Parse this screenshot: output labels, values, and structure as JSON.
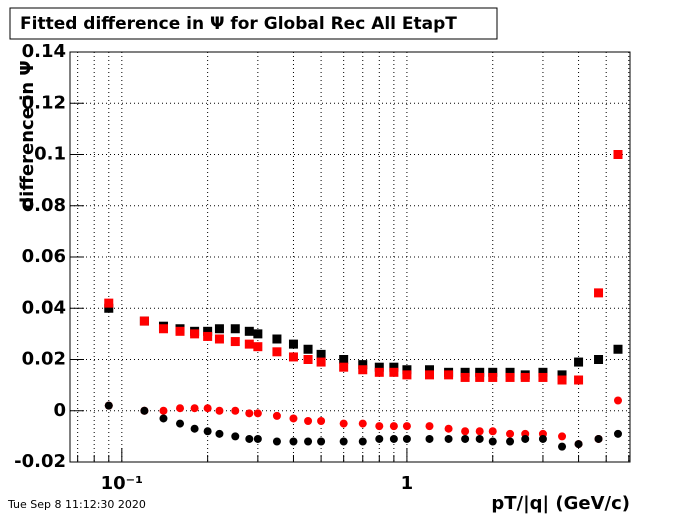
{
  "chart_data": {
    "type": "scatter",
    "title": "Fitted difference in  Ψ  for Global Rec All EtapT",
    "y_label": "difference in Ψ",
    "x_label": "pT/|q| (GeV/c)",
    "timestamp": "Tue Sep  8 11:12:30 2020",
    "log_x": true,
    "grid": true,
    "xlim": [
      0.0658,
      6.06
    ],
    "ylim": [
      -0.02,
      0.14
    ],
    "xticks": [
      {
        "value": 0.1,
        "label": "10⁻¹"
      },
      1
    ],
    "xminor_ticks": [
      0.07,
      0.08,
      0.09,
      0.2,
      0.3,
      0.4,
      0.5,
      0.6,
      0.7,
      0.8,
      0.9,
      2,
      3,
      4,
      5,
      6
    ],
    "yticks": [
      -0.02,
      0,
      0.02,
      0.04,
      0.06,
      0.08,
      0.1,
      0.12,
      0.14
    ],
    "x": [
      0.09,
      0.12,
      0.14,
      0.16,
      0.18,
      0.2,
      0.22,
      0.25,
      0.28,
      0.3,
      0.35,
      0.4,
      0.45,
      0.5,
      0.6,
      0.7,
      0.8,
      0.9,
      1.0,
      1.2,
      1.4,
      1.6,
      1.8,
      2.0,
      2.3,
      2.6,
      3.0,
      3.5,
      4.0,
      4.7,
      5.5
    ],
    "series": [
      {
        "color": "#000000",
        "marker": "square",
        "values": [
          0.04,
          0.035,
          0.033,
          0.032,
          0.031,
          0.031,
          0.032,
          0.032,
          0.031,
          0.03,
          0.028,
          0.026,
          0.024,
          0.022,
          0.02,
          0.018,
          0.017,
          0.017,
          0.016,
          0.016,
          0.015,
          0.015,
          0.015,
          0.015,
          0.015,
          0.014,
          0.015,
          0.014,
          0.019,
          0.02,
          0.024
        ]
      },
      {
        "color": "#ff0000",
        "marker": "square",
        "values": [
          0.042,
          0.035,
          0.032,
          0.031,
          0.03,
          0.029,
          0.028,
          0.027,
          0.026,
          0.025,
          0.023,
          0.021,
          0.02,
          0.019,
          0.017,
          0.016,
          0.015,
          0.015,
          0.014,
          0.014,
          0.014,
          0.013,
          0.013,
          0.013,
          0.013,
          0.013,
          0.013,
          0.012,
          0.012,
          0.046,
          0.1
        ]
      },
      {
        "color": "#ff0000",
        "marker": "circle",
        "values": [
          0.002,
          0.0,
          0.0,
          0.001,
          0.001,
          0.001,
          0.0,
          0.0,
          -0.001,
          -0.001,
          -0.002,
          -0.003,
          -0.004,
          -0.004,
          -0.005,
          -0.005,
          -0.006,
          -0.006,
          -0.006,
          -0.006,
          -0.007,
          -0.008,
          -0.008,
          -0.008,
          -0.009,
          -0.009,
          -0.009,
          -0.01,
          -0.013,
          -0.011,
          0.004
        ]
      },
      {
        "color": "#000000",
        "marker": "circle",
        "values": [
          0.002,
          0.0,
          -0.003,
          -0.005,
          -0.007,
          -0.008,
          -0.009,
          -0.01,
          -0.011,
          -0.011,
          -0.012,
          -0.012,
          -0.012,
          -0.012,
          -0.012,
          -0.012,
          -0.011,
          -0.011,
          -0.011,
          -0.011,
          -0.011,
          -0.011,
          -0.011,
          -0.012,
          -0.012,
          -0.011,
          -0.011,
          -0.014,
          -0.013,
          -0.011,
          -0.009
        ]
      }
    ]
  }
}
